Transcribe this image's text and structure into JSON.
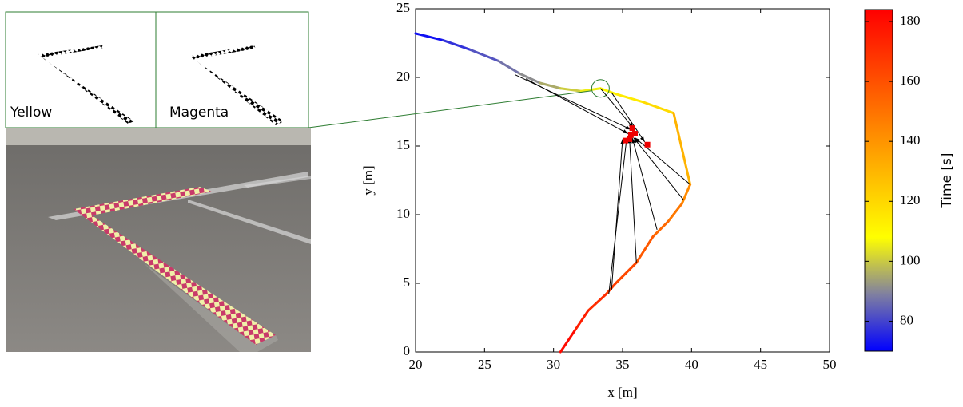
{
  "chart_data": {
    "type": "trajectory",
    "image_labels": [
      "Yellow",
      "Magenta"
    ],
    "xlabel": "x [m]",
    "ylabel": "y [m]",
    "colorbar_label": "Time [s]",
    "x": [
      20,
      22,
      24,
      26,
      27.5,
      29,
      30.5,
      32,
      33.4,
      34.5,
      36.5,
      38.7,
      39.9,
      39.3,
      38.3,
      37.2,
      36,
      34.5,
      33.8,
      32.5,
      31.5,
      30.5
    ],
    "series": [
      {
        "name": "Time [s]",
        "values": [
          23.2,
          22.7,
          22.0,
          21.2,
          20.3,
          19.6,
          19.2,
          19.0,
          19.2,
          18.8,
          18.2,
          17.4,
          12.2,
          10.8,
          9.5,
          8.4,
          6.5,
          5.0,
          4.2,
          3.0,
          1.5,
          0
        ],
        "time": [
          70,
          75,
          80,
          85,
          89,
          93,
          98,
          103,
          108,
          112,
          116,
          122,
          140,
          146,
          151,
          155,
          160,
          165,
          168,
          173,
          178,
          184
        ]
      }
    ],
    "landmarks": {
      "color": "#ee0000",
      "x": [
        35.2,
        35.5,
        35.7,
        35.9,
        36.8,
        35.6
      ],
      "y": [
        15.4,
        15.5,
        16.3,
        15.9,
        15.1,
        15.8
      ]
    },
    "arrows": [
      {
        "from": [
          27.2,
          20.2
        ],
        "to": [
          35.6,
          16.2
        ]
      },
      {
        "from": [
          28.0,
          19.9
        ],
        "to": [
          35.4,
          15.9
        ]
      },
      {
        "from": [
          33.4,
          19.2
        ],
        "to": [
          35.8,
          16.3
        ]
      },
      {
        "from": [
          34.2,
          18.9
        ],
        "to": [
          36.6,
          15.3
        ]
      },
      {
        "from": [
          39.9,
          12.2
        ],
        "to": [
          35.9,
          15.6
        ]
      },
      {
        "from": [
          39.4,
          11.1
        ],
        "to": [
          35.8,
          15.6
        ]
      },
      {
        "from": [
          37.5,
          8.9
        ],
        "to": [
          35.7,
          15.6
        ]
      },
      {
        "from": [
          36.0,
          6.5
        ],
        "to": [
          35.5,
          15.6
        ]
      },
      {
        "from": [
          34.0,
          4.2
        ],
        "to": [
          35.3,
          15.6
        ]
      },
      {
        "from": [
          34.2,
          4.5
        ],
        "to": [
          35.0,
          15.5
        ]
      }
    ],
    "highlight": {
      "x": 33.4,
      "y": 19.2,
      "color": "#2e7d32"
    },
    "xlim": [
      20,
      50
    ],
    "ylim": [
      0,
      25
    ],
    "xticks": [
      20,
      25,
      30,
      35,
      40,
      45,
      50
    ],
    "yticks": [
      0,
      5,
      10,
      15,
      20,
      25
    ],
    "clim": [
      70,
      184
    ],
    "cticks": [
      80,
      100,
      120,
      140,
      160,
      180
    ],
    "colormap": [
      "#0000ff",
      "#8080a0",
      "#ffff00",
      "#ffc000",
      "#ff8000",
      "#ff4000",
      "#ff0000"
    ]
  }
}
